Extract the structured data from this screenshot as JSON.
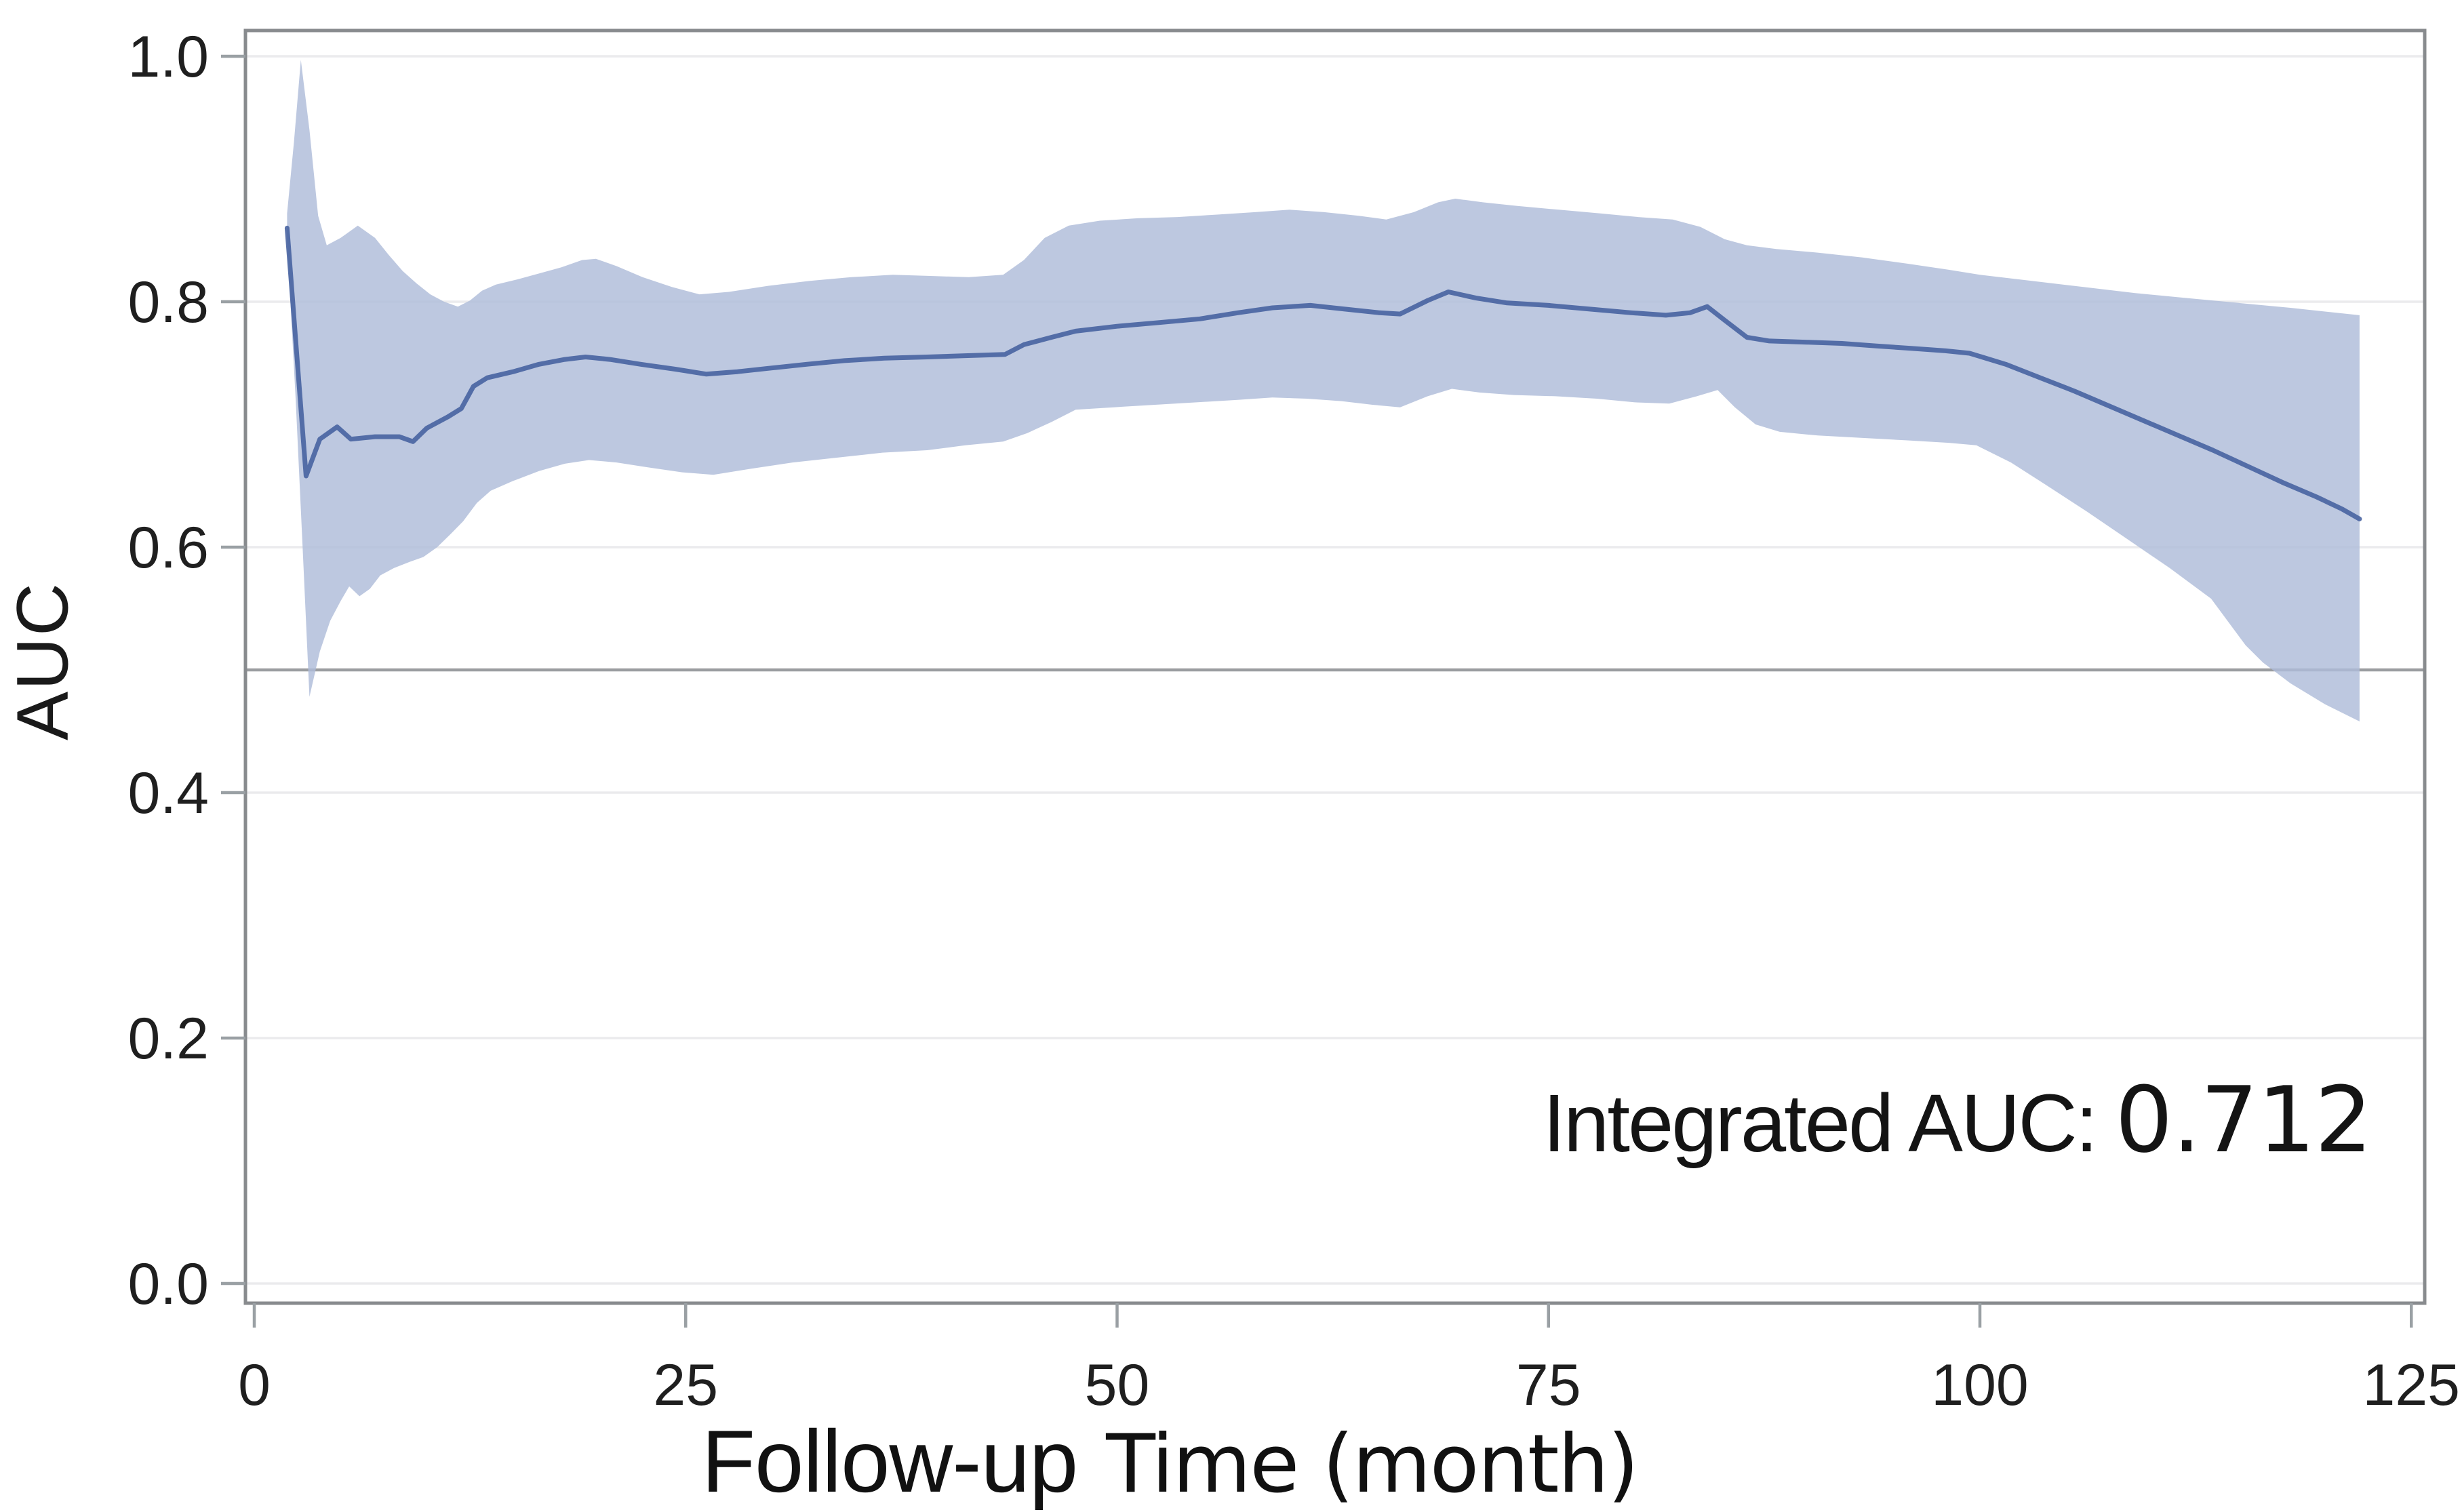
{
  "figure": {
    "background": "#ffffff"
  },
  "chart_data": {
    "type": "line",
    "title": "",
    "ylabel": "AUC",
    "xlabel_parts": {
      "0": "Follow-up",
      "1": "Time (month)"
    },
    "xlabel_full": "Follow-up Time (month)",
    "x_ticks": [
      {
        "label": "0",
        "value": 0
      },
      {
        "label": "25",
        "value": 25
      },
      {
        "label": "50",
        "value": 50
      },
      {
        "label": "75",
        "value": 75
      },
      {
        "label": "100",
        "value": 100
      },
      {
        "label": "125",
        "value": 125
      }
    ],
    "y_ticks": [
      {
        "label": "0.0",
        "value": 0.0
      },
      {
        "label": "0.2",
        "value": 0.2
      },
      {
        "label": "0.4",
        "value": 0.4
      },
      {
        "label": "0.6",
        "value": 0.6
      },
      {
        "label": "0.8",
        "value": 0.8
      },
      {
        "label": "1.0",
        "value": 1.0
      }
    ],
    "xlim": [
      -0.5,
      125.8
    ],
    "ylim": [
      -0.016,
      1.021
    ],
    "grid": true,
    "legend": "none",
    "reference_line": {
      "value": 0.5
    },
    "annotation": {
      "label": "Integrated AUC:",
      "value": "0.712"
    },
    "colors": {
      "line": "#44609e",
      "band": "#aebcd9",
      "grid": "#ebebed",
      "reference_line": "#9b9da0",
      "frame": "#888b8e",
      "tick": "#9aa0a4",
      "text": "#1f1f1f"
    },
    "series": [
      {
        "name": "Time-dependent AUC",
        "type": "line",
        "points": [
          [
            1.9,
            0.86
          ],
          [
            3.0,
            0.658
          ],
          [
            3.8,
            0.688
          ],
          [
            4.8,
            0.698
          ],
          [
            5.6,
            0.688
          ],
          [
            7.0,
            0.69
          ],
          [
            8.4,
            0.69
          ],
          [
            9.2,
            0.686
          ],
          [
            10.0,
            0.697
          ],
          [
            11.2,
            0.706
          ],
          [
            12.0,
            0.713
          ],
          [
            12.7,
            0.731
          ],
          [
            13.5,
            0.738
          ],
          [
            15.0,
            0.743
          ],
          [
            16.5,
            0.749
          ],
          [
            18.0,
            0.753
          ],
          [
            19.2,
            0.755
          ],
          [
            20.6,
            0.753
          ],
          [
            22.4,
            0.749
          ],
          [
            24.4,
            0.745
          ],
          [
            26.2,
            0.741
          ],
          [
            28.0,
            0.743
          ],
          [
            30.0,
            0.746
          ],
          [
            32.0,
            0.749
          ],
          [
            34.2,
            0.752
          ],
          [
            36.5,
            0.754
          ],
          [
            39.0,
            0.755
          ],
          [
            41.2,
            0.756
          ],
          [
            43.5,
            0.757
          ],
          [
            44.6,
            0.765
          ],
          [
            46.2,
            0.771
          ],
          [
            47.6,
            0.776
          ],
          [
            50.0,
            0.78
          ],
          [
            52.4,
            0.783
          ],
          [
            54.8,
            0.786
          ],
          [
            57.0,
            0.791
          ],
          [
            59.0,
            0.795
          ],
          [
            61.2,
            0.797
          ],
          [
            63.2,
            0.794
          ],
          [
            65.2,
            0.791
          ],
          [
            66.4,
            0.79
          ],
          [
            68.0,
            0.801
          ],
          [
            69.2,
            0.808
          ],
          [
            70.8,
            0.803
          ],
          [
            72.6,
            0.799
          ],
          [
            75.0,
            0.797
          ],
          [
            77.4,
            0.794
          ],
          [
            79.8,
            0.791
          ],
          [
            81.8,
            0.789
          ],
          [
            83.2,
            0.791
          ],
          [
            84.2,
            0.796
          ],
          [
            85.2,
            0.785
          ],
          [
            86.5,
            0.771
          ],
          [
            87.8,
            0.768
          ],
          [
            90.0,
            0.767
          ],
          [
            92.0,
            0.766
          ],
          [
            94.0,
            0.764
          ],
          [
            96.0,
            0.762
          ],
          [
            98.0,
            0.76
          ],
          [
            99.4,
            0.758
          ],
          [
            101.5,
            0.749
          ],
          [
            103.5,
            0.738
          ],
          [
            105.5,
            0.727
          ],
          [
            107.5,
            0.715
          ],
          [
            109.5,
            0.703
          ],
          [
            111.5,
            0.691
          ],
          [
            113.5,
            0.679
          ],
          [
            115.5,
            0.666
          ],
          [
            117.5,
            0.653
          ],
          [
            119.5,
            0.641
          ],
          [
            121.0,
            0.631
          ],
          [
            122.0,
            0.623
          ]
        ]
      },
      {
        "name": "Confidence band",
        "type": "band",
        "upper": [
          [
            1.9,
            0.872
          ],
          [
            2.3,
            0.93
          ],
          [
            2.7,
            0.997
          ],
          [
            3.2,
            0.94
          ],
          [
            3.7,
            0.87
          ],
          [
            4.2,
            0.846
          ],
          [
            5.0,
            0.852
          ],
          [
            6.0,
            0.862
          ],
          [
            7.0,
            0.852
          ],
          [
            7.8,
            0.838
          ],
          [
            8.6,
            0.825
          ],
          [
            9.4,
            0.815
          ],
          [
            10.2,
            0.806
          ],
          [
            11.0,
            0.8
          ],
          [
            11.8,
            0.796
          ],
          [
            12.5,
            0.801
          ],
          [
            13.2,
            0.809
          ],
          [
            14.0,
            0.814
          ],
          [
            15.2,
            0.818
          ],
          [
            16.5,
            0.823
          ],
          [
            17.8,
            0.828
          ],
          [
            19.0,
            0.834
          ],
          [
            19.8,
            0.835
          ],
          [
            21.0,
            0.829
          ],
          [
            22.5,
            0.82
          ],
          [
            24.2,
            0.812
          ],
          [
            25.8,
            0.806
          ],
          [
            27.5,
            0.808
          ],
          [
            29.8,
            0.813
          ],
          [
            32.2,
            0.817
          ],
          [
            34.6,
            0.82
          ],
          [
            37.0,
            0.822
          ],
          [
            39.2,
            0.821
          ],
          [
            41.4,
            0.82
          ],
          [
            43.4,
            0.822
          ],
          [
            44.6,
            0.834
          ],
          [
            45.8,
            0.852
          ],
          [
            47.2,
            0.862
          ],
          [
            49.0,
            0.866
          ],
          [
            51.2,
            0.868
          ],
          [
            53.5,
            0.869
          ],
          [
            55.8,
            0.871
          ],
          [
            58.0,
            0.873
          ],
          [
            60.0,
            0.875
          ],
          [
            62.0,
            0.873
          ],
          [
            64.0,
            0.87
          ],
          [
            65.6,
            0.867
          ],
          [
            67.2,
            0.873
          ],
          [
            68.6,
            0.881
          ],
          [
            69.6,
            0.884
          ],
          [
            71.2,
            0.881
          ],
          [
            73.2,
            0.878
          ],
          [
            75.6,
            0.875
          ],
          [
            78.0,
            0.872
          ],
          [
            80.2,
            0.869
          ],
          [
            82.2,
            0.867
          ],
          [
            83.8,
            0.861
          ],
          [
            85.2,
            0.851
          ],
          [
            86.5,
            0.846
          ],
          [
            88.2,
            0.843
          ],
          [
            90.6,
            0.84
          ],
          [
            93.2,
            0.836
          ],
          [
            95.8,
            0.831
          ],
          [
            98.2,
            0.826
          ],
          [
            100.0,
            0.822
          ],
          [
            103.0,
            0.817
          ],
          [
            106.0,
            0.812
          ],
          [
            109.0,
            0.807
          ],
          [
            112.0,
            0.803
          ],
          [
            115.0,
            0.799
          ],
          [
            118.0,
            0.795
          ],
          [
            120.0,
            0.792
          ],
          [
            122.0,
            0.789
          ]
        ],
        "lower": [
          [
            1.9,
            0.85
          ],
          [
            2.4,
            0.72
          ],
          [
            2.8,
            0.6
          ],
          [
            3.2,
            0.478
          ],
          [
            3.8,
            0.515
          ],
          [
            4.4,
            0.54
          ],
          [
            5.0,
            0.556
          ],
          [
            5.5,
            0.568
          ],
          [
            6.1,
            0.56
          ],
          [
            6.7,
            0.566
          ],
          [
            7.3,
            0.577
          ],
          [
            8.1,
            0.583
          ],
          [
            9.0,
            0.588
          ],
          [
            9.8,
            0.592
          ],
          [
            10.6,
            0.6
          ],
          [
            11.4,
            0.611
          ],
          [
            12.1,
            0.621
          ],
          [
            12.9,
            0.636
          ],
          [
            13.7,
            0.646
          ],
          [
            15.0,
            0.654
          ],
          [
            16.5,
            0.662
          ],
          [
            18.0,
            0.668
          ],
          [
            19.4,
            0.671
          ],
          [
            21.0,
            0.669
          ],
          [
            22.8,
            0.665
          ],
          [
            24.8,
            0.661
          ],
          [
            26.6,
            0.659
          ],
          [
            28.8,
            0.664
          ],
          [
            31.2,
            0.669
          ],
          [
            33.8,
            0.673
          ],
          [
            36.4,
            0.677
          ],
          [
            39.0,
            0.679
          ],
          [
            41.2,
            0.683
          ],
          [
            43.4,
            0.686
          ],
          [
            44.8,
            0.693
          ],
          [
            46.2,
            0.702
          ],
          [
            47.6,
            0.712
          ],
          [
            49.8,
            0.714
          ],
          [
            52.2,
            0.716
          ],
          [
            54.6,
            0.718
          ],
          [
            57.0,
            0.72
          ],
          [
            59.0,
            0.722
          ],
          [
            61.0,
            0.721
          ],
          [
            63.0,
            0.719
          ],
          [
            64.8,
            0.716
          ],
          [
            66.4,
            0.714
          ],
          [
            68.0,
            0.723
          ],
          [
            69.4,
            0.729
          ],
          [
            71.0,
            0.726
          ],
          [
            73.0,
            0.724
          ],
          [
            75.4,
            0.723
          ],
          [
            77.8,
            0.721
          ],
          [
            80.0,
            0.718
          ],
          [
            82.0,
            0.717
          ],
          [
            83.6,
            0.723
          ],
          [
            84.8,
            0.728
          ],
          [
            85.8,
            0.714
          ],
          [
            87.0,
            0.7
          ],
          [
            88.4,
            0.694
          ],
          [
            90.6,
            0.691
          ],
          [
            93.2,
            0.689
          ],
          [
            95.8,
            0.687
          ],
          [
            98.2,
            0.685
          ],
          [
            99.8,
            0.683
          ],
          [
            101.8,
            0.669
          ],
          [
            103.8,
            0.651
          ],
          [
            106.2,
            0.629
          ],
          [
            108.6,
            0.606
          ],
          [
            111.0,
            0.583
          ],
          [
            113.4,
            0.558
          ],
          [
            115.4,
            0.52
          ],
          [
            116.4,
            0.506
          ],
          [
            118.0,
            0.489
          ],
          [
            120.0,
            0.472
          ],
          [
            122.0,
            0.458
          ]
        ]
      }
    ]
  }
}
